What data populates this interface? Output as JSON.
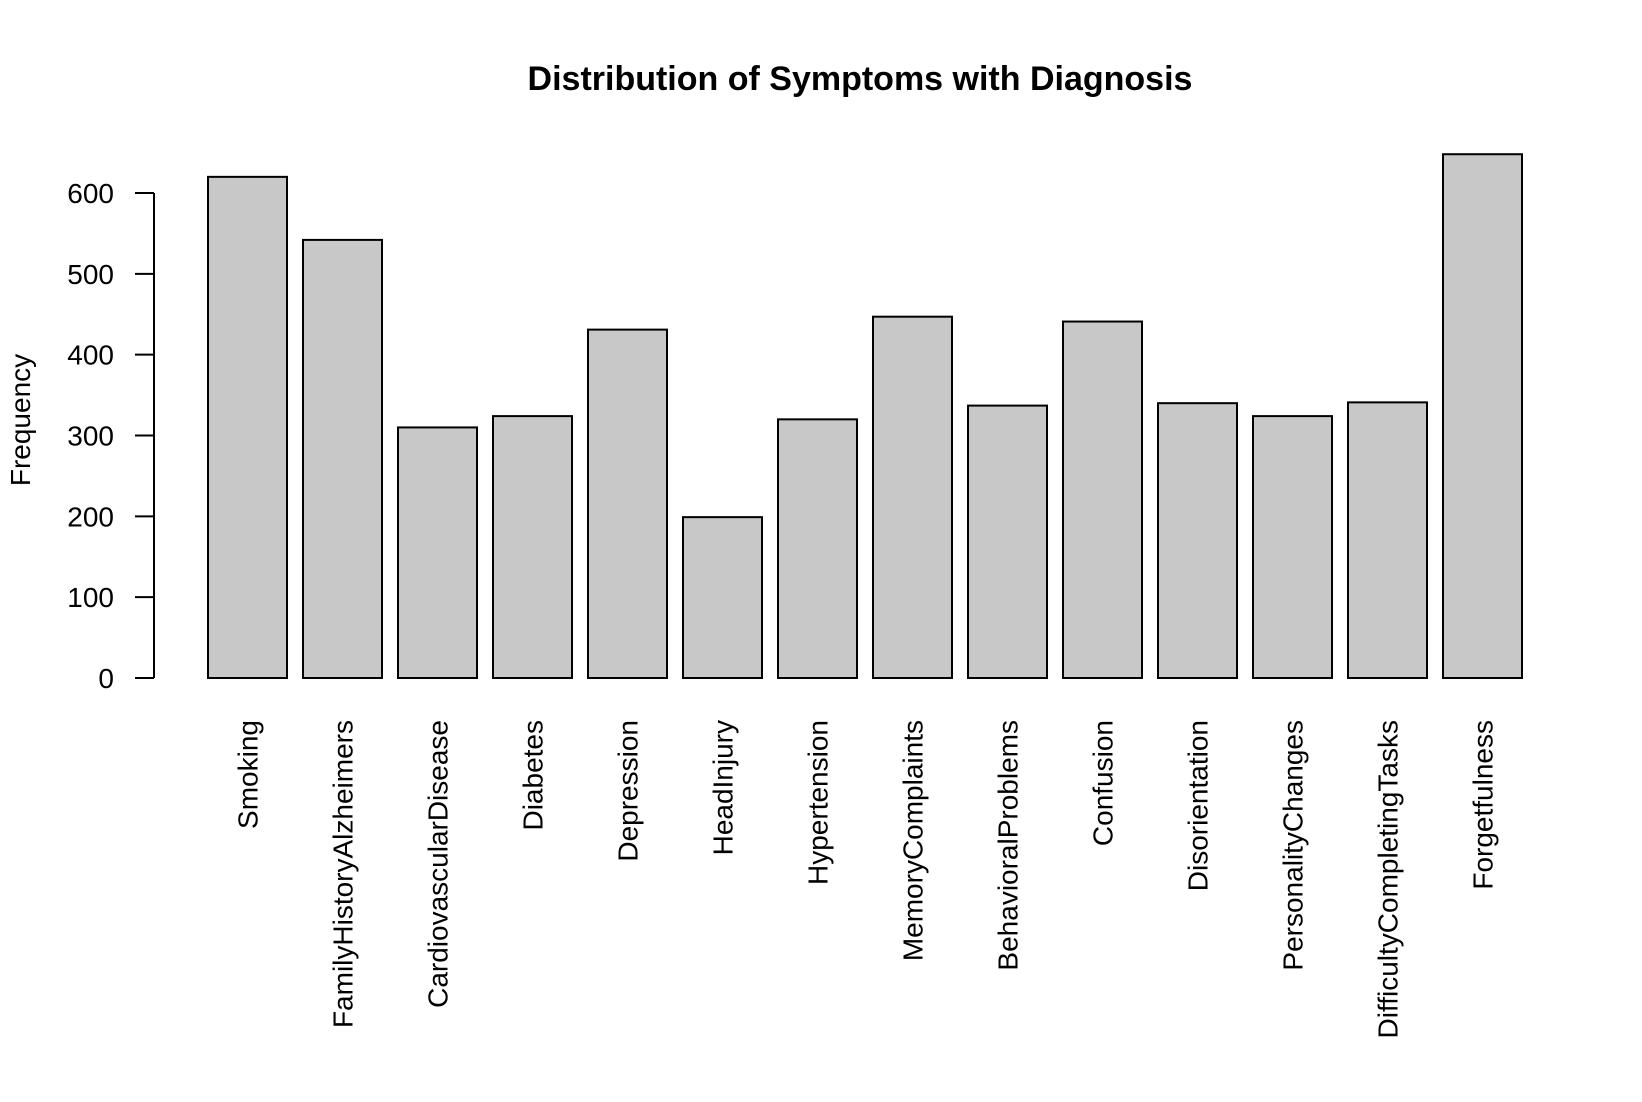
{
  "chart_data": {
    "type": "bar",
    "title": "Distribution of Symptoms with Diagnosis",
    "xlabel": "",
    "ylabel": "Frequency",
    "ylim": [
      0,
      650
    ],
    "yticks": [
      0,
      100,
      200,
      300,
      400,
      500,
      600
    ],
    "bar_color": "#c8c8c8",
    "bar_border_color": "#000000",
    "grid": false,
    "legend": "none",
    "categories": [
      "Smoking",
      "FamilyHistoryAlzheimers",
      "CardiovascularDisease",
      "Diabetes",
      "Depression",
      "HeadInjury",
      "Hypertension",
      "MemoryComplaints",
      "BehavioralProblems",
      "Confusion",
      "Disorientation",
      "PersonalityChanges",
      "DifficultyCompletingTasks",
      "Forgetfulness"
    ],
    "values": [
      620,
      542,
      310,
      324,
      431,
      199,
      320,
      447,
      337,
      441,
      340,
      324,
      341,
      648
    ]
  }
}
